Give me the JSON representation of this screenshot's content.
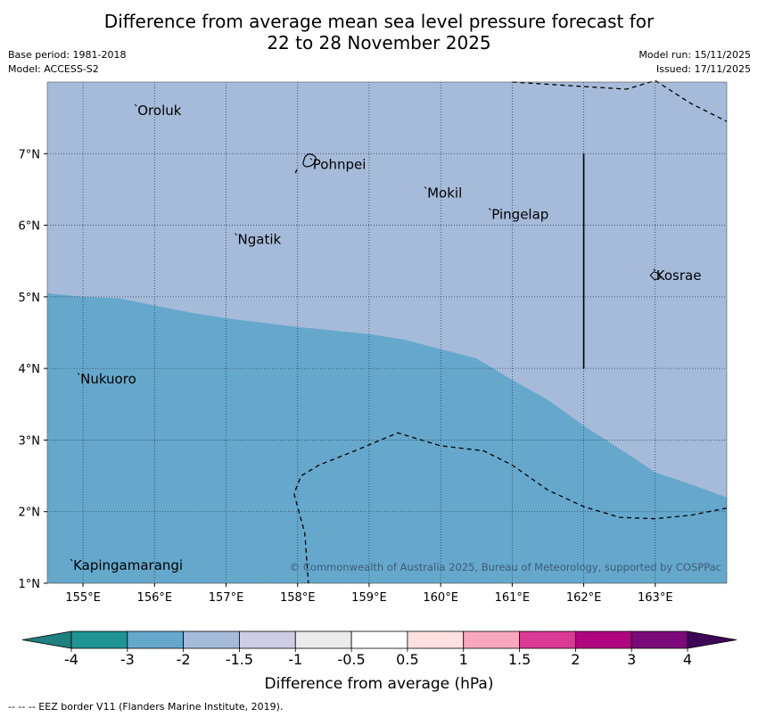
{
  "title": {
    "line1": "Difference from average mean sea level pressure forecast for",
    "line2": "22 to 28 November 2025"
  },
  "meta": {
    "base_period": "Base period: 1981-2018",
    "model": "Model: ACCESS-S2",
    "model_run": "Model run: 15/11/2025",
    "issued": "Issued: 17/11/2025"
  },
  "map": {
    "lon_range": [
      154.5,
      164.0
    ],
    "lat_range": [
      1.0,
      8.0
    ],
    "lon_ticks": [
      "155°E",
      "156°E",
      "157°E",
      "158°E",
      "159°E",
      "160°E",
      "161°E",
      "162°E",
      "163°E"
    ],
    "lat_ticks": [
      "1°N",
      "2°N",
      "3°N",
      "4°N",
      "5°N",
      "6°N",
      "7°N"
    ],
    "places": [
      {
        "name": "Oroluk",
        "lon": 155.75,
        "lat": 7.6
      },
      {
        "name": "Pohnpei",
        "lon": 158.2,
        "lat": 6.85
      },
      {
        "name": "Mokil",
        "lon": 159.8,
        "lat": 6.45
      },
      {
        "name": "Pingelap",
        "lon": 160.7,
        "lat": 6.15
      },
      {
        "name": "Ngatik",
        "lon": 157.15,
        "lat": 5.8
      },
      {
        "name": "Kosrae",
        "lon": 163.0,
        "lat": 5.3
      },
      {
        "name": "Nukuoro",
        "lon": 154.95,
        "lat": 3.85
      },
      {
        "name": "Kapingamarangi",
        "lon": 154.85,
        "lat": 1.25
      }
    ],
    "copyright": "© Commonwealth of Australia 2025, Bureau of Meteorology, supported by COSPPac",
    "fill_colors": {
      "band_-2_-1.5": "#a6bbda",
      "band_-3_-2": "#65a8cc"
    }
  },
  "colorbar": {
    "labels": [
      "-4",
      "-3",
      "-2",
      "-1.5",
      "-1",
      "-0.5",
      "0.5",
      "1",
      "1.5",
      "2",
      "3",
      "4"
    ],
    "colors": [
      "#207f7f",
      "#1e9494",
      "#65a8cc",
      "#a6bbda",
      "#cfcde5",
      "#ebebeb",
      "#ffffff",
      "#ffe0e0",
      "#f9a7bf",
      "#da3a96",
      "#b0057f",
      "#7b0a7a",
      "#3f0657"
    ],
    "label": "Difference from average (hPa)"
  },
  "footer": "--  --  -- EEZ border V11 (Flanders Marine Institute, 2019)."
}
